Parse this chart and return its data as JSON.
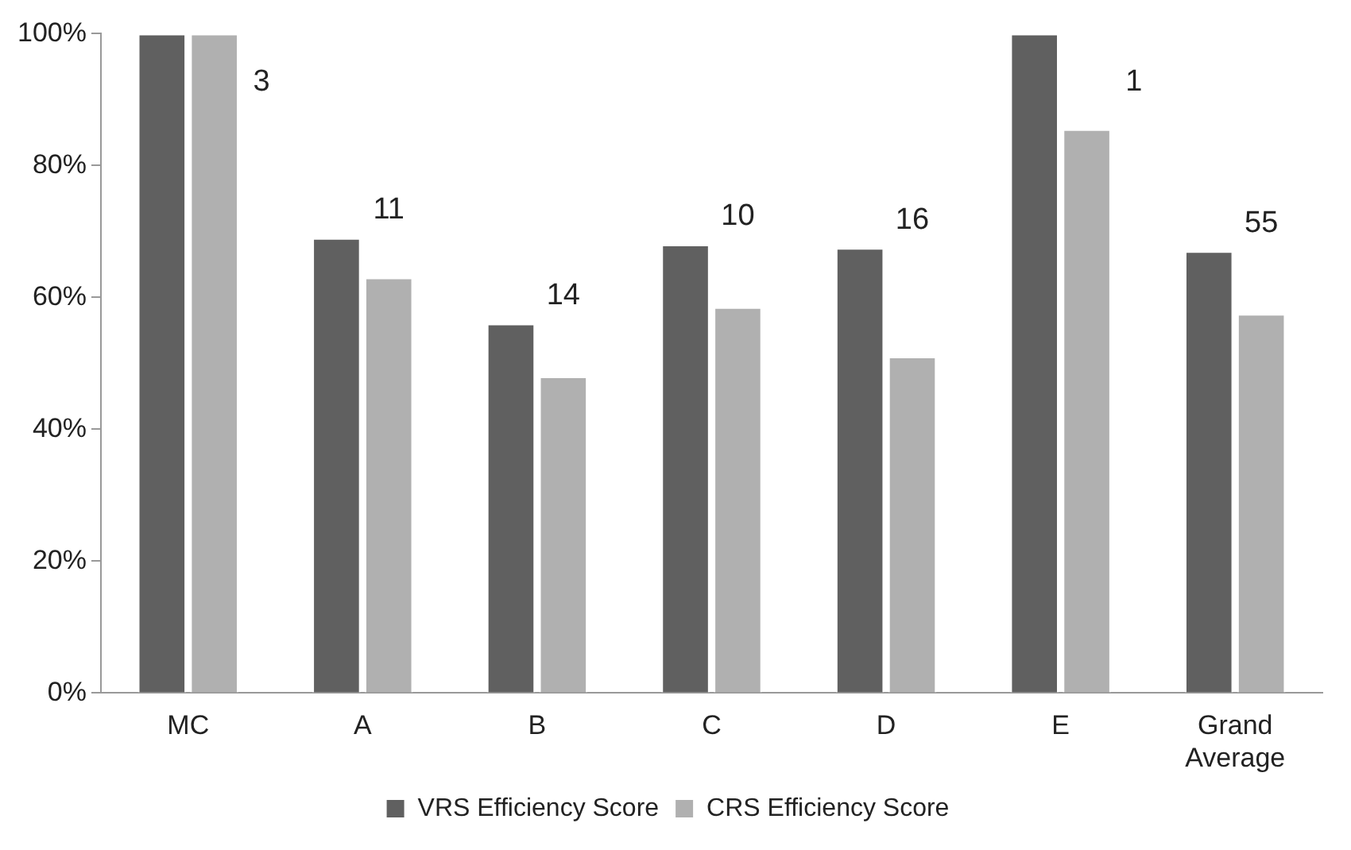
{
  "chart_data": {
    "type": "bar",
    "categories": [
      "MC",
      "A",
      "B",
      "C",
      "D",
      "E",
      "Grand Average"
    ],
    "series": [
      {
        "name": "VRS Efficiency Score",
        "color": "#606060",
        "values": [
          100,
          69,
          56,
          68,
          67.5,
          100,
          67
        ]
      },
      {
        "name": "CRS Efficiency Score",
        "color": "#b0b0b0",
        "values": [
          100,
          63,
          48,
          58.5,
          51,
          85.5,
          57.5
        ]
      }
    ],
    "ylim": [
      0,
      100
    ],
    "yticks": [
      {
        "value": 0,
        "label": "0%"
      },
      {
        "value": 20,
        "label": "20%"
      },
      {
        "value": 40,
        "label": "40%"
      },
      {
        "value": 60,
        "label": "60%"
      },
      {
        "value": 80,
        "label": "80%"
      },
      {
        "value": 100,
        "label": "100%"
      }
    ],
    "annotations": [
      "3",
      "11",
      "14",
      "10",
      "16",
      "1",
      "55"
    ],
    "grid": false,
    "legend": "bottom"
  }
}
